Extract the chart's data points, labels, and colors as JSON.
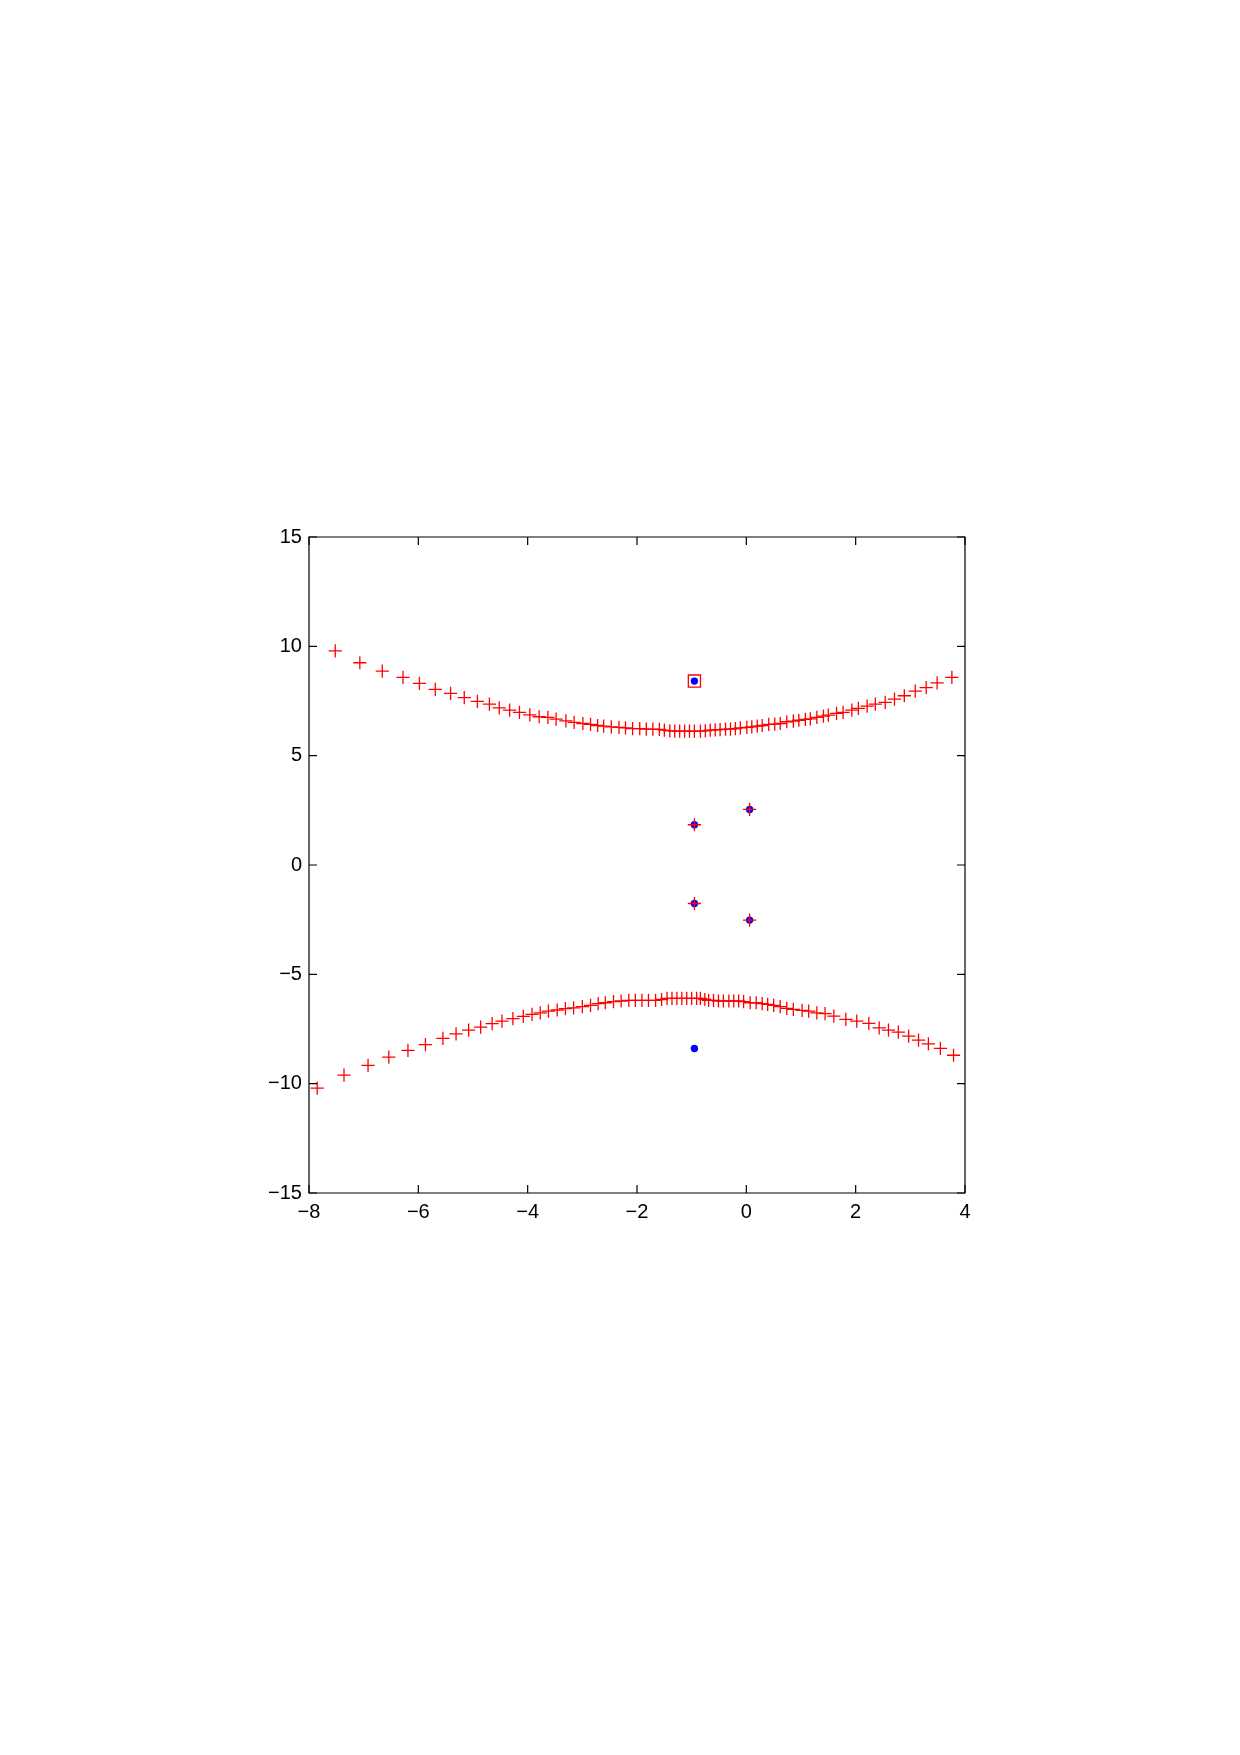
{
  "chart_data": {
    "type": "scatter",
    "xlim": [
      -8,
      4
    ],
    "xticks": [
      {
        "value": -8,
        "label": "−8"
      },
      {
        "value": -6,
        "label": "−6"
      },
      {
        "value": -4,
        "label": "−4"
      },
      {
        "value": -2,
        "label": "−2"
      },
      0,
      2,
      4
    ],
    "ylim": [
      -15,
      15
    ],
    "yticks": [
      {
        "value": -15,
        "label": "−15"
      },
      {
        "value": -10,
        "label": "−10"
      },
      {
        "value": -5,
        "label": "−5"
      },
      0,
      5,
      10,
      15
    ],
    "series": [
      {
        "color": "#0000ff",
        "marker": "circle",
        "x": [
          -0.95,
          -0.95,
          0.06,
          -0.95,
          0.06,
          -0.95
        ],
        "values": [
          8.41,
          1.84,
          2.54,
          -1.76,
          -2.52,
          -8.39
        ]
      },
      {
        "color": "#ff0000",
        "marker": "cross",
        "x": [
          -7.52,
          -7.07,
          -6.66,
          -6.28,
          -5.98,
          -5.69,
          -5.41,
          -5.16,
          -4.92,
          -4.7,
          -4.52,
          -4.33,
          -4.15,
          -3.96,
          -3.79,
          -3.63,
          -3.48,
          -3.3,
          -3.15,
          -2.99,
          -2.85,
          -2.72,
          -2.61,
          -2.47,
          -2.33,
          -2.21,
          -2.08,
          -1.95,
          -1.83,
          -1.71,
          -1.59,
          -1.5,
          -1.4,
          -1.31,
          -1.22,
          -1.13,
          -1.04,
          -0.95,
          -0.84,
          -0.75,
          -0.66,
          -0.57,
          -0.48,
          -0.38,
          -0.29,
          -0.2,
          -0.11,
          0.01,
          0.1,
          0.2,
          0.29,
          0.41,
          0.52,
          0.62,
          0.74,
          0.86,
          0.96,
          1.08,
          1.17,
          1.29,
          1.41,
          1.5,
          1.65,
          1.77,
          1.93,
          2.05,
          2.21,
          2.36,
          2.54,
          2.71,
          2.89,
          3.09,
          3.29,
          3.49,
          3.76,
          -0.95,
          0.06,
          -0.95,
          0.06,
          -7.85,
          -7.36,
          -6.92,
          -6.54,
          -6.19,
          -5.87,
          -5.55,
          -5.31,
          -5.08,
          -4.86,
          -4.65,
          -4.47,
          -4.27,
          -4.08,
          -3.92,
          -3.77,
          -3.62,
          -3.46,
          -3.31,
          -3.16,
          -3.0,
          -2.85,
          -2.71,
          -2.58,
          -2.43,
          -2.29,
          -2.15,
          -2.03,
          -1.91,
          -1.79,
          -1.66,
          -1.55,
          -1.45,
          -1.36,
          -1.27,
          -1.18,
          -1.09,
          -1.0,
          -0.91,
          -0.84,
          -0.76,
          -0.69,
          -0.6,
          -0.51,
          -0.42,
          -0.32,
          -0.23,
          -0.14,
          -0.05,
          0.07,
          0.18,
          0.29,
          0.39,
          0.5,
          0.62,
          0.74,
          0.86,
          1.02,
          1.14,
          1.29,
          1.44,
          1.6,
          1.82,
          2.02,
          2.24,
          2.43,
          2.6,
          2.78,
          2.97,
          3.15,
          3.33,
          3.55,
          3.79
        ],
        "values": [
          9.79,
          9.25,
          8.87,
          8.58,
          8.31,
          8.03,
          7.85,
          7.65,
          7.48,
          7.36,
          7.19,
          7.08,
          6.98,
          6.87,
          6.78,
          6.75,
          6.67,
          6.59,
          6.52,
          6.47,
          6.43,
          6.38,
          6.35,
          6.32,
          6.29,
          6.27,
          6.24,
          6.24,
          6.21,
          6.21,
          6.2,
          6.17,
          6.13,
          6.12,
          6.12,
          6.12,
          6.12,
          6.12,
          6.12,
          6.13,
          6.17,
          6.18,
          6.19,
          6.21,
          6.21,
          6.24,
          6.27,
          6.29,
          6.32,
          6.35,
          6.38,
          6.43,
          6.44,
          6.47,
          6.55,
          6.58,
          6.62,
          6.66,
          6.68,
          6.75,
          6.81,
          6.85,
          6.93,
          6.98,
          7.08,
          7.16,
          7.27,
          7.36,
          7.44,
          7.59,
          7.74,
          7.95,
          8.11,
          8.33,
          8.58,
          1.84,
          2.54,
          -1.76,
          -2.52,
          -10.2,
          -9.61,
          -9.16,
          -8.79,
          -8.48,
          -8.21,
          -7.93,
          -7.72,
          -7.55,
          -7.41,
          -7.25,
          -7.14,
          -7.03,
          -6.92,
          -6.83,
          -6.76,
          -6.68,
          -6.63,
          -6.57,
          -6.53,
          -6.48,
          -6.42,
          -6.34,
          -6.3,
          -6.25,
          -6.22,
          -6.19,
          -6.19,
          -6.19,
          -6.19,
          -6.19,
          -6.15,
          -6.1,
          -6.1,
          -6.1,
          -6.1,
          -6.1,
          -6.1,
          -6.1,
          -6.1,
          -6.15,
          -6.19,
          -6.19,
          -6.22,
          -6.22,
          -6.22,
          -6.22,
          -6.22,
          -6.25,
          -6.3,
          -6.3,
          -6.34,
          -6.37,
          -6.42,
          -6.48,
          -6.56,
          -6.6,
          -6.65,
          -6.68,
          -6.76,
          -6.8,
          -6.91,
          -7.06,
          -7.14,
          -7.24,
          -7.45,
          -7.55,
          -7.64,
          -7.83,
          -8.01,
          -8.18,
          -8.39,
          -8.7
        ]
      },
      {
        "color": "#ff0000",
        "marker": "square",
        "x": [
          -0.95
        ],
        "values": [
          8.41
        ]
      }
    ]
  }
}
